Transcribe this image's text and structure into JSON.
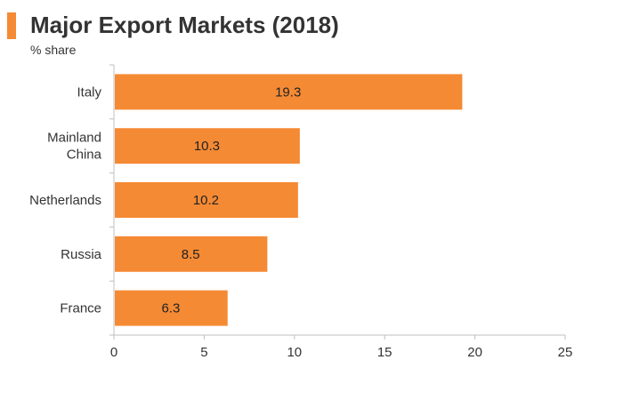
{
  "title": "Major Export Markets (2018)",
  "subtitle": "% share",
  "colors": {
    "bar": "#f58a34",
    "accent": "#f58a34",
    "axis": "#bfbfbf",
    "text": "#333333"
  },
  "chart_data": {
    "type": "bar",
    "orientation": "horizontal",
    "title": "Major Export Markets (2018)",
    "subtitle": "% share",
    "categories": [
      "Italy",
      "Mainland China",
      "Netherlands",
      "Russia",
      "France"
    ],
    "category_lines": [
      [
        "Italy"
      ],
      [
        "Mainland",
        "China"
      ],
      [
        "Netherlands"
      ],
      [
        "Russia"
      ],
      [
        "France"
      ]
    ],
    "values": [
      19.3,
      10.3,
      10.2,
      8.5,
      6.3
    ],
    "data_labels": [
      "19.3",
      "10.3",
      "10.2",
      "8.5",
      "6.3"
    ],
    "xlim": [
      0,
      25
    ],
    "xticks": [
      0,
      5,
      10,
      15,
      20,
      25
    ],
    "xtick_labels": [
      "0",
      "5",
      "10",
      "15",
      "20",
      "25"
    ],
    "xlabel": "",
    "ylabel": "",
    "grid": false,
    "legend": "none"
  }
}
